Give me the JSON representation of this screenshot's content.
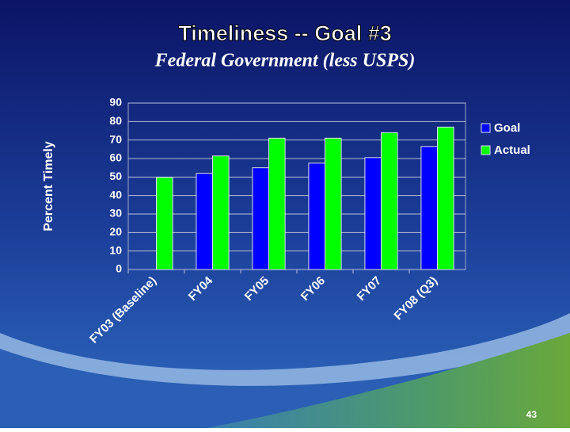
{
  "chart_data": {
    "type": "bar",
    "title": "Timeliness -- Goal #3",
    "subtitle": "Federal Government (less USPS)",
    "y_label": "Percent Timely",
    "categories": [
      "FY03 (Baseline)",
      "FY04",
      "FY05",
      "FY06",
      "FY07",
      "FY08 (Q3)"
    ],
    "series": [
      {
        "name": "Goal",
        "color": "#0000ff",
        "values": [
          null,
          52,
          55,
          57.5,
          60.5,
          66.5
        ]
      },
      {
        "name": "Actual",
        "color": "#00ff00",
        "values": [
          49.8,
          61.4,
          71,
          71,
          74,
          77
        ]
      }
    ],
    "ylim": [
      0,
      90
    ],
    "yticks": [
      0,
      10,
      20,
      30,
      40,
      50,
      60,
      70,
      80,
      90
    ],
    "grid": true,
    "legend": "right"
  },
  "page_number": "43"
}
